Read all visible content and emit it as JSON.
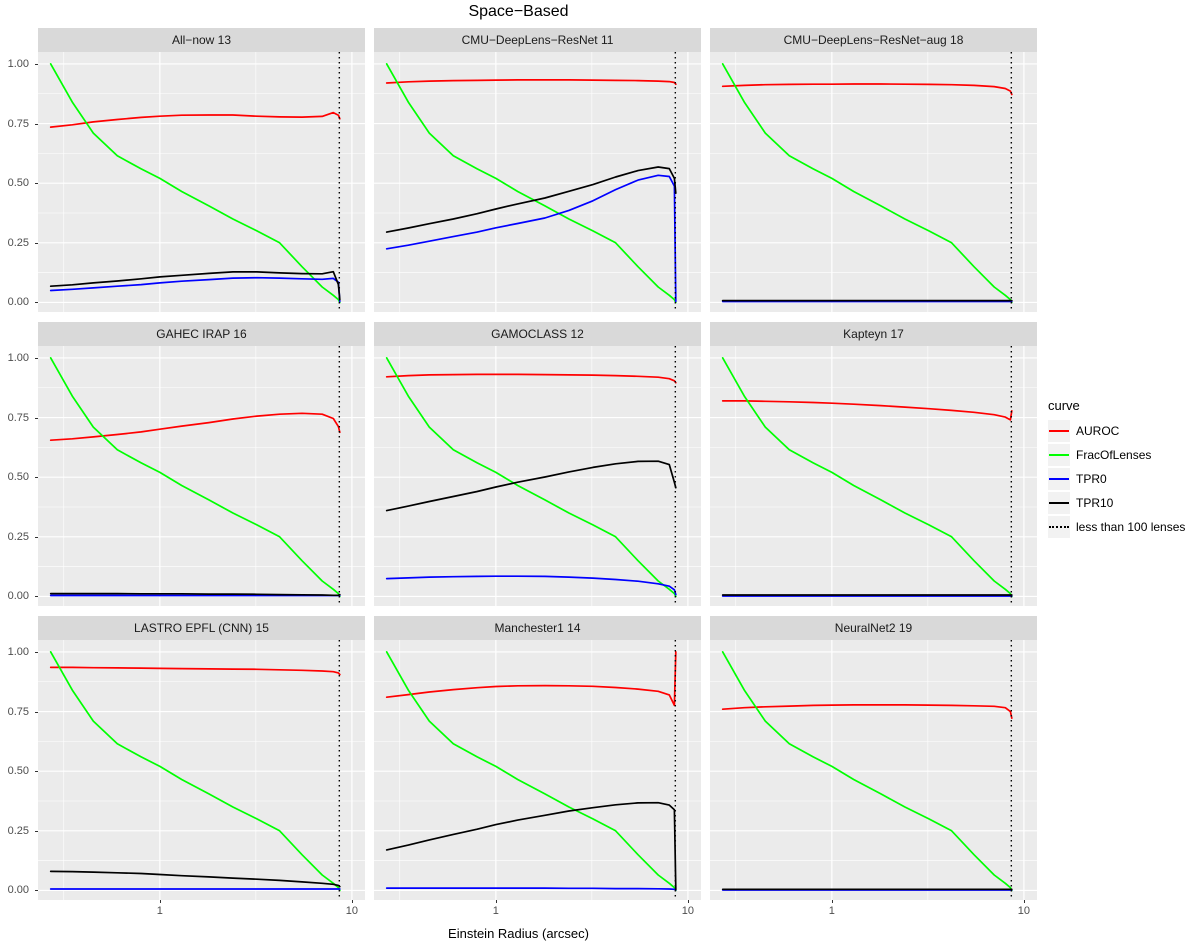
{
  "chart_data": {
    "type": "line",
    "title": "Space−Based",
    "xlabel": "Einstein Radius (arcsec)",
    "x_scale": "log10",
    "x_domain": [
      0.232,
      11.7
    ],
    "ylim": [
      -0.04,
      1.05
    ],
    "x_tick_values": [
      1,
      10
    ],
    "x_tick_labels": [
      "1",
      "10"
    ],
    "x_minor_values": [
      0.316,
      3.162
    ],
    "y_tick_values": [
      0,
      0.25,
      0.5,
      0.75,
      1
    ],
    "y_tick_labels": [
      "0.00",
      "0.25",
      "0.50",
      "0.75",
      "1.00"
    ],
    "y_minor_values": [
      0.125,
      0.375,
      0.625,
      0.875
    ],
    "cutoff_x": 8.6,
    "cutoff_label": "less than 100 lenses",
    "colors": {
      "auroc": "#FF0000",
      "fracoflenses": "#00FF00",
      "tpr0": "#0000FF",
      "tpr10": "#000000",
      "cutoff": "#000000",
      "panel_bg": "#EBEBEB",
      "strip_bg": "#D9D9D9",
      "grid": "#FFFFFF"
    },
    "x": [
      0.27,
      0.35,
      0.45,
      0.6,
      0.8,
      1.0,
      1.3,
      1.8,
      2.4,
      3.2,
      4.2,
      5.5,
      7.0,
      8.0,
      8.5,
      8.65
    ],
    "fracoflenses": [
      1.0,
      0.84,
      0.71,
      0.615,
      0.56,
      0.52,
      0.465,
      0.405,
      0.35,
      0.3,
      0.25,
      0.15,
      0.065,
      0.03,
      0.012,
      0.0
    ],
    "panels": [
      {
        "title": "All−now 13",
        "auroc": [
          0.735,
          0.745,
          0.757,
          0.767,
          0.776,
          0.781,
          0.785,
          0.786,
          0.786,
          0.781,
          0.778,
          0.777,
          0.78,
          0.796,
          0.785,
          0.77
        ],
        "tpr10": [
          0.068,
          0.074,
          0.082,
          0.09,
          0.099,
          0.107,
          0.114,
          0.122,
          0.128,
          0.128,
          0.124,
          0.121,
          0.12,
          0.129,
          0.075,
          0.012
        ],
        "tpr0": [
          0.05,
          0.055,
          0.061,
          0.068,
          0.075,
          0.082,
          0.089,
          0.096,
          0.102,
          0.104,
          0.102,
          0.099,
          0.097,
          0.101,
          0.085,
          0.004
        ]
      },
      {
        "title": "CMU−DeepLens−ResNet 11",
        "auroc": [
          0.92,
          0.925,
          0.928,
          0.93,
          0.931,
          0.932,
          0.933,
          0.933,
          0.933,
          0.932,
          0.931,
          0.93,
          0.928,
          0.926,
          0.922,
          0.915
        ],
        "tpr10": [
          0.295,
          0.312,
          0.33,
          0.35,
          0.372,
          0.392,
          0.413,
          0.438,
          0.466,
          0.494,
          0.526,
          0.553,
          0.568,
          0.561,
          0.52,
          0.458
        ],
        "tpr0": [
          0.225,
          0.24,
          0.257,
          0.276,
          0.295,
          0.313,
          0.331,
          0.354,
          0.386,
          0.426,
          0.473,
          0.513,
          0.533,
          0.528,
          0.488,
          0.004
        ]
      },
      {
        "title": "CMU−DeepLens−ResNet−aug 18",
        "auroc": [
          0.906,
          0.91,
          0.913,
          0.914,
          0.915,
          0.915,
          0.916,
          0.916,
          0.915,
          0.914,
          0.913,
          0.91,
          0.905,
          0.897,
          0.886,
          0.872
        ],
        "tpr10": 0.008,
        "tpr0": 0.004
      },
      {
        "title": "GAHEC IRAP 16",
        "auroc": [
          0.655,
          0.661,
          0.669,
          0.679,
          0.69,
          0.701,
          0.714,
          0.729,
          0.744,
          0.756,
          0.764,
          0.768,
          0.764,
          0.746,
          0.712,
          0.688
        ],
        "tpr10": [
          0.012,
          0.012,
          0.012,
          0.012,
          0.011,
          0.011,
          0.011,
          0.01,
          0.01,
          0.009,
          0.008,
          0.007,
          0.006,
          0.005,
          0.005,
          0.008
        ],
        "tpr0": 0.004
      },
      {
        "title": "GAMOCLASS 12",
        "auroc": [
          0.921,
          0.926,
          0.929,
          0.93,
          0.931,
          0.931,
          0.931,
          0.93,
          0.929,
          0.928,
          0.926,
          0.923,
          0.919,
          0.913,
          0.904,
          0.896
        ],
        "tpr10": [
          0.36,
          0.379,
          0.398,
          0.419,
          0.44,
          0.459,
          0.479,
          0.501,
          0.522,
          0.541,
          0.556,
          0.566,
          0.567,
          0.553,
          0.478,
          0.456
        ],
        "tpr0": [
          0.075,
          0.078,
          0.081,
          0.083,
          0.084,
          0.085,
          0.085,
          0.084,
          0.081,
          0.077,
          0.071,
          0.064,
          0.053,
          0.043,
          0.028,
          0.008
        ]
      },
      {
        "title": "Kapteyn 17",
        "auroc": [
          0.82,
          0.82,
          0.818,
          0.816,
          0.813,
          0.81,
          0.806,
          0.8,
          0.794,
          0.787,
          0.78,
          0.772,
          0.762,
          0.752,
          0.74,
          0.778
        ],
        "tpr10": 0.006,
        "tpr0": 0.002
      },
      {
        "title": "LASTRO EPFL (CNN) 15",
        "auroc": [
          0.935,
          0.935,
          0.934,
          0.933,
          0.932,
          0.931,
          0.93,
          0.929,
          0.928,
          0.927,
          0.925,
          0.923,
          0.92,
          0.917,
          0.912,
          0.905
        ],
        "tpr10": [
          0.08,
          0.079,
          0.077,
          0.074,
          0.071,
          0.067,
          0.062,
          0.057,
          0.052,
          0.047,
          0.042,
          0.036,
          0.03,
          0.026,
          0.021,
          0.016
        ],
        "tpr0": 0.006
      },
      {
        "title": "Manchester1 14",
        "auroc": [
          0.81,
          0.821,
          0.832,
          0.842,
          0.85,
          0.855,
          0.858,
          0.859,
          0.858,
          0.856,
          0.851,
          0.844,
          0.835,
          0.82,
          0.776,
          1.0
        ],
        "tpr10": [
          0.17,
          0.19,
          0.212,
          0.235,
          0.257,
          0.276,
          0.295,
          0.315,
          0.333,
          0.347,
          0.359,
          0.367,
          0.368,
          0.358,
          0.338,
          0.004
        ],
        "tpr0": [
          0.01,
          0.01,
          0.01,
          0.01,
          0.01,
          0.01,
          0.01,
          0.01,
          0.009,
          0.009,
          0.008,
          0.008,
          0.007,
          0.006,
          0.005,
          0.002
        ]
      },
      {
        "title": "NeuralNet2 19",
        "auroc": [
          0.76,
          0.766,
          0.77,
          0.773,
          0.776,
          0.777,
          0.778,
          0.778,
          0.778,
          0.777,
          0.776,
          0.774,
          0.772,
          0.766,
          0.75,
          0.722
        ],
        "tpr10": 0.005,
        "tpr0": 0.002
      }
    ],
    "legend": {
      "title": "curve",
      "entries": [
        {
          "label": "AUROC",
          "color": "#FF0000",
          "style": "solid"
        },
        {
          "label": "FracOfLenses",
          "color": "#00FF00",
          "style": "solid"
        },
        {
          "label": "TPR0",
          "color": "#0000FF",
          "style": "solid"
        },
        {
          "label": "TPR10",
          "color": "#000000",
          "style": "solid"
        },
        {
          "label": "less than 100 lenses",
          "color": "#000000",
          "style": "dotted"
        }
      ],
      "position": "right"
    },
    "grid": true
  }
}
